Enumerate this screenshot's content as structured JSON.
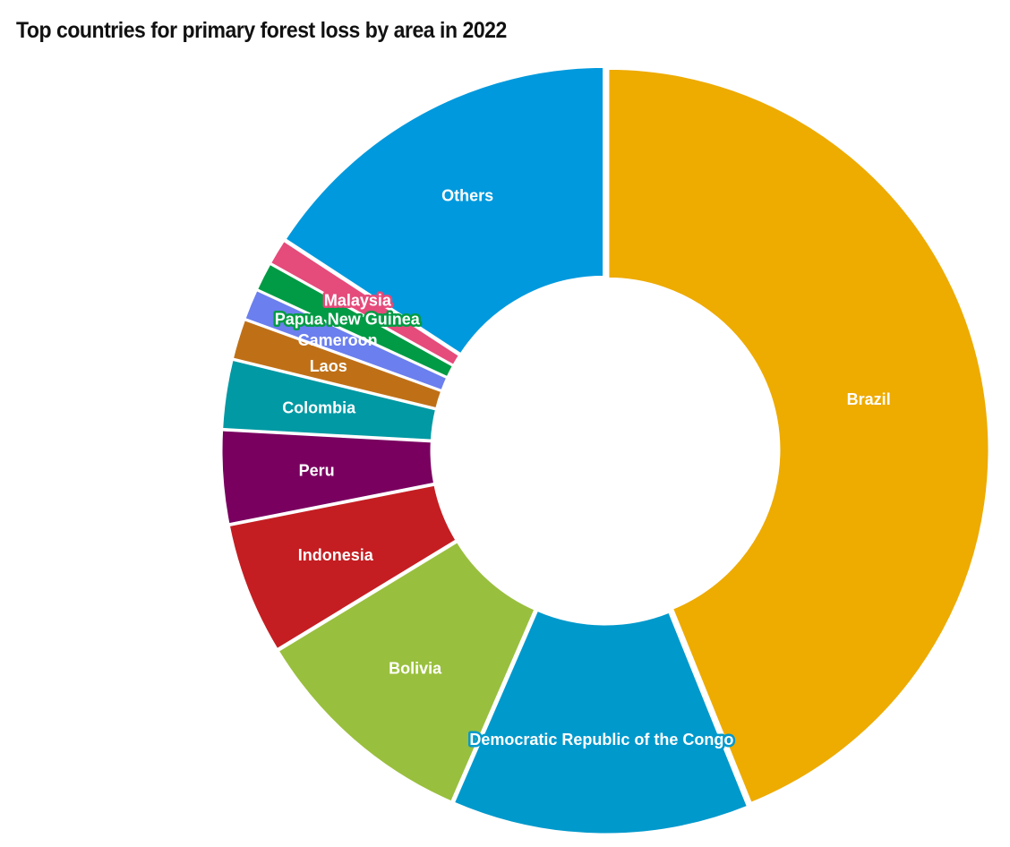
{
  "chart_data": {
    "type": "pie",
    "title": "Top countries for primary forest loss by area in 2022",
    "categories": [
      "Brazil",
      "Democratic Republic of the Congo",
      "Bolivia",
      "Indonesia",
      "Peru",
      "Colombia",
      "Laos",
      "Cameroon",
      "Papua New Guinea",
      "Malaysia",
      "Others"
    ],
    "values": [
      43.1,
      12.4,
      9.6,
      5.5,
      3.9,
      2.9,
      1.7,
      1.3,
      1.2,
      1.1,
      15.5
    ],
    "colors": [
      "#eeab00",
      "#0099cc",
      "#99bf3e",
      "#c41e22",
      "#7a0060",
      "#0099a4",
      "#bf7017",
      "#6b7fee",
      "#009b44",
      "#e54b7b",
      "#0099dd"
    ],
    "legend": "none"
  }
}
